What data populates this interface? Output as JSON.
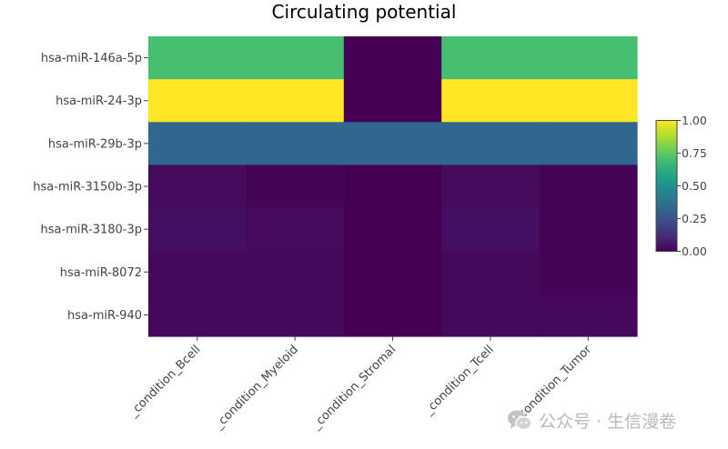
{
  "chart_data": {
    "type": "heatmap",
    "title": "Circulating potential",
    "xlabel": "",
    "ylabel": "",
    "x": [
      "_condition_Bcell",
      "_condition_Myeloid",
      "_condition_Stromal",
      "_condition_Tcell",
      "_condition_Tumor"
    ],
    "y": [
      "hsa-miR-146a-5p",
      "hsa-miR-24-3p",
      "hsa-miR-29b-3p",
      "hsa-miR-3150b-3p",
      "hsa-miR-3180-3p",
      "hsa-miR-8072",
      "hsa-miR-940"
    ],
    "z": [
      [
        0.7,
        0.7,
        0.0,
        0.7,
        0.7
      ],
      [
        1.0,
        1.0,
        0.0,
        1.0,
        1.0
      ],
      [
        0.33,
        0.33,
        0.33,
        0.33,
        0.33
      ],
      [
        0.03,
        0.01,
        0.0,
        0.03,
        0.01
      ],
      [
        0.04,
        0.03,
        0.0,
        0.04,
        0.01
      ],
      [
        0.02,
        0.02,
        0.0,
        0.02,
        0.01
      ],
      [
        0.02,
        0.02,
        0.0,
        0.02,
        0.02
      ]
    ],
    "zlim": [
      0,
      1
    ],
    "colorscale": "Viridis",
    "colorbar": {
      "ticks": [
        "0.00",
        "0.25",
        "0.50",
        "0.75",
        "1.00"
      ],
      "placement": "right"
    }
  },
  "watermark": {
    "text": "公众号 · 生信漫卷",
    "icon": "wechat-icon"
  }
}
